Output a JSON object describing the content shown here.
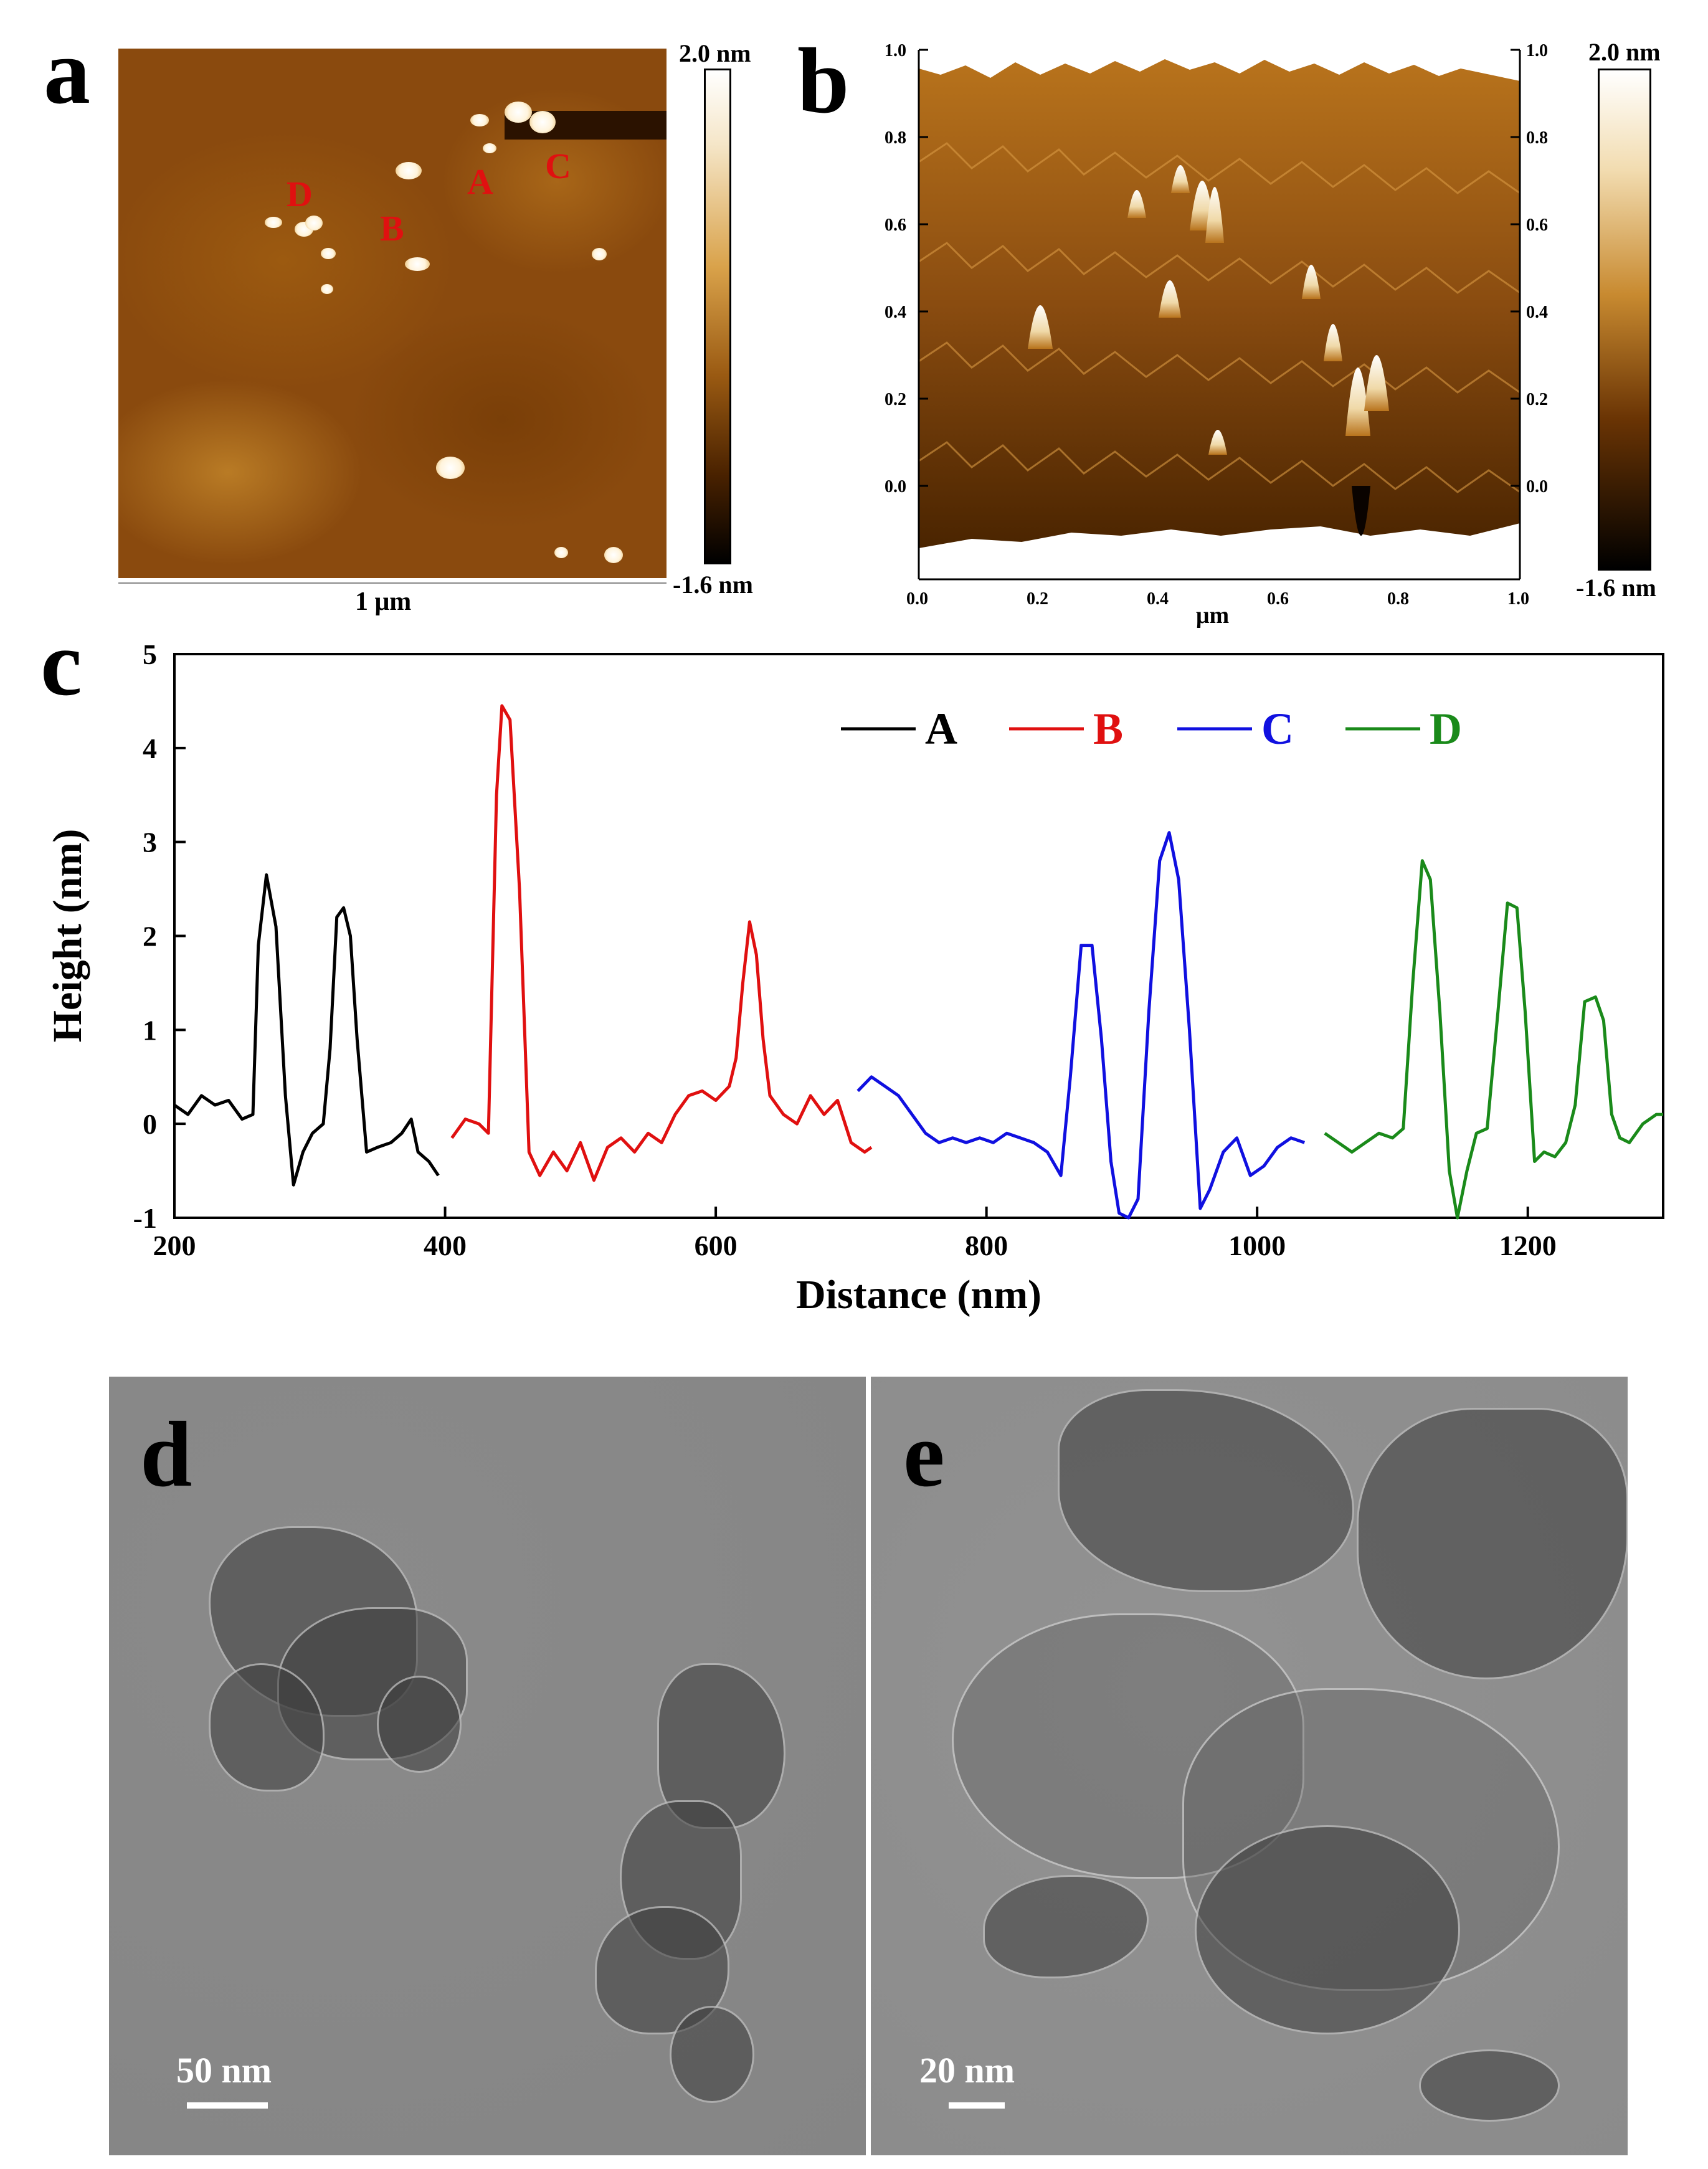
{
  "panels": {
    "a": {
      "letter": "a",
      "colorbar_max": "2.0 nm",
      "colorbar_min": "-1.6 nm",
      "scale_label": "1 μm",
      "profile_labels": [
        "A",
        "B",
        "C",
        "D"
      ]
    },
    "b": {
      "letter": "b",
      "colorbar_max": "2.0 nm",
      "colorbar_min": "-1.6 nm",
      "axis_ticks_y": [
        "1.0",
        "0.8",
        "0.6",
        "0.4",
        "0.2",
        "0.0"
      ],
      "axis_ticks_x": [
        "0.0",
        "0.2",
        "0.4",
        "0.6",
        "0.8",
        "1.0"
      ],
      "x_unit": "μm"
    },
    "c": {
      "letter": "c"
    },
    "d": {
      "letter": "d",
      "scale_label": "50 nm"
    },
    "e": {
      "letter": "e",
      "scale_label": "20 nm"
    }
  },
  "chart_data": {
    "type": "line",
    "title": "",
    "xlabel": "Distance (nm)",
    "ylabel": "Height (nm)",
    "xlim": [
      200,
      1300
    ],
    "ylim": [
      -1,
      5
    ],
    "xticks": [
      200,
      400,
      600,
      800,
      1000,
      1200
    ],
    "yticks": [
      -1,
      0,
      1,
      2,
      3,
      4,
      5
    ],
    "legend_position": "top-right",
    "series": [
      {
        "name": "A",
        "color": "#000000",
        "x": [
          200,
          210,
          220,
          230,
          240,
          250,
          258,
          262,
          268,
          275,
          282,
          288,
          295,
          302,
          310,
          315,
          320,
          325,
          330,
          335,
          342,
          350,
          360,
          368,
          375,
          380,
          388,
          395
        ],
        "y": [
          0.2,
          0.1,
          0.3,
          0.2,
          0.25,
          0.05,
          0.1,
          1.9,
          2.65,
          2.1,
          0.3,
          -0.65,
          -0.3,
          -0.1,
          0.0,
          0.8,
          2.2,
          2.3,
          2.0,
          0.9,
          -0.3,
          -0.25,
          -0.2,
          -0.1,
          0.05,
          -0.3,
          -0.4,
          -0.55
        ]
      },
      {
        "name": "B",
        "color": "#e01010",
        "x": [
          405,
          415,
          425,
          432,
          438,
          442,
          448,
          455,
          462,
          470,
          480,
          490,
          500,
          510,
          520,
          530,
          540,
          550,
          560,
          570,
          580,
          590,
          600,
          610,
          615,
          620,
          625,
          630,
          635,
          640,
          645,
          650,
          660,
          670,
          680,
          690,
          700,
          710,
          715
        ],
        "y": [
          -0.15,
          0.05,
          0.0,
          -0.1,
          3.5,
          4.45,
          4.3,
          2.5,
          -0.3,
          -0.55,
          -0.3,
          -0.5,
          -0.2,
          -0.6,
          -0.25,
          -0.15,
          -0.3,
          -0.1,
          -0.2,
          0.1,
          0.3,
          0.35,
          0.25,
          0.4,
          0.7,
          1.5,
          2.15,
          1.8,
          0.9,
          0.3,
          0.2,
          0.1,
          0.0,
          0.3,
          0.1,
          0.25,
          -0.2,
          -0.3,
          -0.25
        ]
      },
      {
        "name": "C",
        "color": "#1010e0",
        "x": [
          705,
          715,
          725,
          735,
          745,
          755,
          765,
          775,
          785,
          795,
          805,
          815,
          825,
          835,
          845,
          855,
          862,
          870,
          878,
          885,
          892,
          898,
          905,
          912,
          920,
          928,
          935,
          942,
          950,
          958,
          965,
          975,
          985,
          995,
          1005,
          1015,
          1025,
          1035
        ],
        "y": [
          0.35,
          0.5,
          0.4,
          0.3,
          0.1,
          -0.1,
          -0.2,
          -0.15,
          -0.2,
          -0.15,
          -0.2,
          -0.1,
          -0.15,
          -0.2,
          -0.3,
          -0.55,
          0.5,
          1.9,
          1.9,
          0.9,
          -0.4,
          -0.95,
          -1.0,
          -0.8,
          1.2,
          2.8,
          3.1,
          2.6,
          1.0,
          -0.9,
          -0.7,
          -0.3,
          -0.15,
          -0.55,
          -0.45,
          -0.25,
          -0.15,
          -0.2
        ]
      },
      {
        "name": "D",
        "color": "#1a8a1a",
        "x": [
          1050,
          1060,
          1070,
          1080,
          1090,
          1100,
          1108,
          1115,
          1122,
          1128,
          1135,
          1142,
          1148,
          1155,
          1162,
          1170,
          1178,
          1185,
          1192,
          1198,
          1205,
          1212,
          1220,
          1228,
          1235,
          1242,
          1250,
          1256,
          1262,
          1268,
          1275,
          1285,
          1295,
          1300
        ],
        "y": [
          -0.1,
          -0.2,
          -0.3,
          -0.2,
          -0.1,
          -0.15,
          -0.05,
          1.5,
          2.8,
          2.6,
          1.2,
          -0.5,
          -1.0,
          -0.5,
          -0.1,
          -0.05,
          1.2,
          2.35,
          2.3,
          1.2,
          -0.4,
          -0.3,
          -0.35,
          -0.2,
          0.2,
          1.3,
          1.35,
          1.1,
          0.1,
          -0.15,
          -0.2,
          0.0,
          0.1,
          0.1
        ]
      }
    ]
  }
}
